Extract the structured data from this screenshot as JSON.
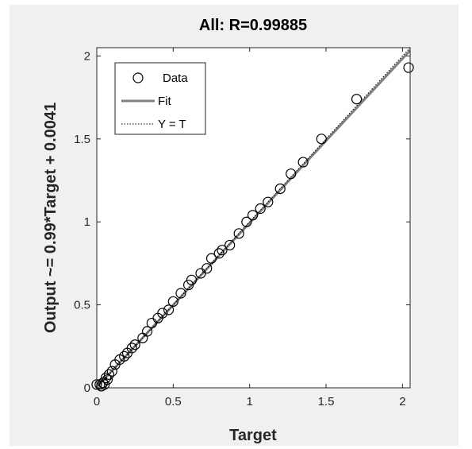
{
  "chart_data": {
    "type": "scatter",
    "title": "All: R=0.99885",
    "xlabel": "Target",
    "ylabel": "Output ~= 0.99*Target + 0.0041",
    "xlim": [
      0,
      2.05
    ],
    "ylim": [
      0,
      2.05
    ],
    "xticks": [
      "0",
      "0.5",
      "1",
      "1.5",
      "2"
    ],
    "yticks": [
      "0",
      "0.5",
      "1",
      "1.5",
      "2"
    ],
    "xtick_values": [
      0,
      0.5,
      1,
      1.5,
      2
    ],
    "ytick_values": [
      0,
      0.5,
      1,
      1.5,
      2
    ],
    "grid": false,
    "legend_position": "top-left",
    "legend": [
      "Data",
      "Fit",
      "Y = T"
    ],
    "fit": {
      "slope": 0.99,
      "intercept": 0.0041
    },
    "series": [
      {
        "name": "Data",
        "marker": "circle",
        "color": "#000000",
        "points": [
          [
            0.0,
            0.02
          ],
          [
            0.02,
            0.02
          ],
          [
            0.03,
            0.01
          ],
          [
            0.04,
            0.03
          ],
          [
            0.05,
            0.02
          ],
          [
            0.06,
            0.06
          ],
          [
            0.07,
            0.05
          ],
          [
            0.08,
            0.08
          ],
          [
            0.1,
            0.1
          ],
          [
            0.12,
            0.14
          ],
          [
            0.15,
            0.17
          ],
          [
            0.18,
            0.19
          ],
          [
            0.2,
            0.21
          ],
          [
            0.23,
            0.24
          ],
          [
            0.25,
            0.26
          ],
          [
            0.3,
            0.3
          ],
          [
            0.33,
            0.34
          ],
          [
            0.36,
            0.39
          ],
          [
            0.4,
            0.42
          ],
          [
            0.43,
            0.45
          ],
          [
            0.47,
            0.47
          ],
          [
            0.5,
            0.52
          ],
          [
            0.55,
            0.57
          ],
          [
            0.6,
            0.62
          ],
          [
            0.62,
            0.65
          ],
          [
            0.68,
            0.69
          ],
          [
            0.72,
            0.72
          ],
          [
            0.75,
            0.78
          ],
          [
            0.8,
            0.81
          ],
          [
            0.82,
            0.83
          ],
          [
            0.87,
            0.86
          ],
          [
            0.93,
            0.93
          ],
          [
            0.98,
            1.0
          ],
          [
            1.02,
            1.04
          ],
          [
            1.07,
            1.08
          ],
          [
            1.12,
            1.12
          ],
          [
            1.2,
            1.2
          ],
          [
            1.27,
            1.29
          ],
          [
            1.35,
            1.36
          ],
          [
            1.47,
            1.5
          ],
          [
            1.7,
            1.74
          ],
          [
            2.04,
            1.93
          ]
        ]
      }
    ],
    "colors": {
      "fit_line": "#808080",
      "identity_line": "#000000",
      "axes": "#262626",
      "figure_bg": "#f0f0f0",
      "plot_bg": "#ffffff"
    }
  }
}
